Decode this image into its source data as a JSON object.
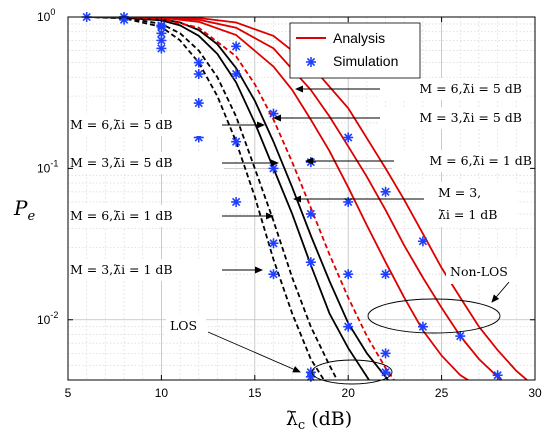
{
  "chart_data": {
    "type": "line",
    "y_scale": "log",
    "xlim": [
      5,
      30
    ],
    "ylim": [
      0.004,
      1
    ],
    "grid": true,
    "legend_position": "top-right",
    "xlabel": "λ̄c (dB)",
    "ylabel": "Pe",
    "x_ticks": [
      "5",
      "10",
      "15",
      "20",
      "25",
      "30"
    ],
    "y_ticks": [
      {
        "value": 1,
        "label": "10^0"
      },
      {
        "value": 0.1,
        "label": "10^-1"
      },
      {
        "value": 0.01,
        "label": "10^-2"
      }
    ],
    "legend": {
      "analysis": "Analysis",
      "simulation": "Simulation"
    },
    "colors": {
      "los": "#000000",
      "nlos": "#dd0000",
      "simulation": "#1f3fff"
    },
    "series": [
      {
        "group": "LOS",
        "params": "M=3, λ̄i=1 dB",
        "color": "#000000",
        "dash": "dashed",
        "x": [
          6,
          8,
          10,
          11,
          12,
          13,
          14,
          15,
          16,
          17,
          18,
          19
        ],
        "y": [
          1,
          0.98,
          0.86,
          0.7,
          0.5,
          0.3,
          0.15,
          0.065,
          0.025,
          0.011,
          0.0055,
          0.0035
        ]
      },
      {
        "group": "LOS",
        "params": "M=6, λ̄i=1 dB",
        "color": "#000000",
        "dash": "dashed",
        "x": [
          6,
          8,
          10,
          11,
          12,
          13,
          14,
          15,
          16,
          17,
          18,
          19,
          19.5
        ],
        "y": [
          1,
          0.99,
          0.9,
          0.78,
          0.6,
          0.4,
          0.22,
          0.1,
          0.045,
          0.019,
          0.009,
          0.005,
          0.0038
        ]
      },
      {
        "group": "LOS",
        "params": "M=3, λ̄i=5 dB",
        "color": "#000000",
        "dash": "solid",
        "x": [
          6,
          8,
          10,
          11,
          12,
          13,
          14,
          15,
          16,
          17,
          18,
          19,
          20,
          21,
          21.5
        ],
        "y": [
          1,
          0.99,
          0.95,
          0.88,
          0.75,
          0.57,
          0.37,
          0.2,
          0.1,
          0.05,
          0.023,
          0.011,
          0.0065,
          0.0042,
          0.0034
        ]
      },
      {
        "group": "LOS",
        "params": "M=6, λ̄i=5 dB",
        "color": "#000000",
        "dash": "solid",
        "x": [
          6,
          8,
          10,
          11,
          12,
          13,
          14,
          15,
          16,
          17,
          18,
          19,
          20,
          21,
          22,
          22.5
        ],
        "y": [
          1,
          0.995,
          0.97,
          0.92,
          0.82,
          0.66,
          0.46,
          0.28,
          0.15,
          0.075,
          0.036,
          0.018,
          0.0095,
          0.006,
          0.0042,
          0.0035
        ]
      },
      {
        "group": "Non-LOS",
        "params": "M=3, λ̄i=1 dB",
        "color": "#dd0000",
        "dash": "dashed",
        "x": [
          6,
          8,
          10,
          12,
          14,
          15,
          16,
          17,
          18,
          19,
          20,
          21,
          22,
          23
        ],
        "y": [
          1,
          1,
          0.97,
          0.85,
          0.55,
          0.36,
          0.21,
          0.11,
          0.055,
          0.027,
          0.014,
          0.0078,
          0.0048,
          0.0032
        ]
      },
      {
        "group": "Non-LOS",
        "params": "M=6, λ̄i=1 dB",
        "color": "#dd0000",
        "dash": "solid",
        "x": [
          6,
          8,
          10,
          12,
          14,
          16,
          17,
          18,
          19,
          20,
          21,
          22,
          23,
          24,
          25,
          26,
          27,
          28
        ],
        "y": [
          1,
          1,
          0.99,
          0.93,
          0.76,
          0.47,
          0.33,
          0.21,
          0.13,
          0.075,
          0.042,
          0.024,
          0.014,
          0.0085,
          0.0058,
          0.0043,
          0.0036,
          0.003
        ]
      },
      {
        "group": "Non-LOS",
        "params": "M=3, λ̄i=5 dB",
        "color": "#dd0000",
        "dash": "solid",
        "x": [
          6,
          8,
          10,
          12,
          14,
          16,
          18,
          19,
          20,
          21,
          22,
          23,
          24,
          25,
          26,
          27,
          28,
          29
        ],
        "y": [
          1,
          1,
          0.995,
          0.96,
          0.85,
          0.62,
          0.33,
          0.22,
          0.14,
          0.088,
          0.053,
          0.031,
          0.019,
          0.012,
          0.0078,
          0.0055,
          0.0042,
          0.0033
        ]
      },
      {
        "group": "Non-LOS",
        "params": "M=6, λ̄i=5 dB",
        "color": "#dd0000",
        "dash": "solid",
        "x": [
          6,
          8,
          10,
          12,
          14,
          16,
          18,
          20,
          22,
          23,
          24,
          25,
          26,
          27,
          28,
          29,
          30
        ],
        "y": [
          1,
          1,
          1,
          0.985,
          0.92,
          0.75,
          0.48,
          0.25,
          0.1,
          0.062,
          0.037,
          0.022,
          0.014,
          0.009,
          0.0063,
          0.0046,
          0.0036
        ]
      }
    ],
    "simulation_points": [
      {
        "x": 6,
        "y": 1
      },
      {
        "x": 8,
        "y": 1
      },
      {
        "x": 8,
        "y": 0.96
      },
      {
        "x": 10,
        "y": 0.88
      },
      {
        "x": 10,
        "y": 0.86
      },
      {
        "x": 10,
        "y": 0.78
      },
      {
        "x": 10,
        "y": 0.7
      },
      {
        "x": 10,
        "y": 0.62
      },
      {
        "x": 12,
        "y": 0.5
      },
      {
        "x": 12,
        "y": 0.42
      },
      {
        "x": 12,
        "y": 0.27
      },
      {
        "x": 12,
        "y": 0.16
      },
      {
        "x": 14,
        "y": 0.64
      },
      {
        "x": 14,
        "y": 0.42
      },
      {
        "x": 14,
        "y": 0.15
      },
      {
        "x": 14,
        "y": 0.06
      },
      {
        "x": 16,
        "y": 0.23
      },
      {
        "x": 16,
        "y": 0.1
      },
      {
        "x": 16,
        "y": 0.032
      },
      {
        "x": 16,
        "y": 0.02
      },
      {
        "x": 18,
        "y": 0.11
      },
      {
        "x": 18,
        "y": 0.05
      },
      {
        "x": 18,
        "y": 0.024
      },
      {
        "x": 18,
        "y": 0.0045
      },
      {
        "x": 18,
        "y": 0.0042
      },
      {
        "x": 20,
        "y": 0.16
      },
      {
        "x": 20,
        "y": 0.06
      },
      {
        "x": 20,
        "y": 0.02
      },
      {
        "x": 20,
        "y": 0.009
      },
      {
        "x": 22,
        "y": 0.07
      },
      {
        "x": 22,
        "y": 0.02
      },
      {
        "x": 22,
        "y": 0.006
      },
      {
        "x": 22,
        "y": 0.0045
      },
      {
        "x": 24,
        "y": 0.033
      },
      {
        "x": 24,
        "y": 0.009
      },
      {
        "x": 26,
        "y": 0.019
      },
      {
        "x": 26,
        "y": 0.0078
      },
      {
        "x": 28,
        "y": 0.0043
      }
    ],
    "annotations": [
      {
        "label": "M = 6,λ̄i = 5 dB"
      },
      {
        "label": "M = 3,λ̄i = 5 dB"
      },
      {
        "label": "M = 6,λ̄i = 1 dB"
      },
      {
        "label": "M = 3,"
      },
      {
        "label": "λ̄i = 1 dB"
      },
      {
        "label": "M = 6,λ̄i = 5 dB"
      },
      {
        "label": "M = 3,λ̄i = 5 dB"
      },
      {
        "label": "M = 6,λ̄i = 1 dB"
      },
      {
        "label": "M = 3,λ̄i = 1 dB"
      },
      {
        "label": "Non-LOS"
      },
      {
        "label": "LOS"
      }
    ]
  }
}
